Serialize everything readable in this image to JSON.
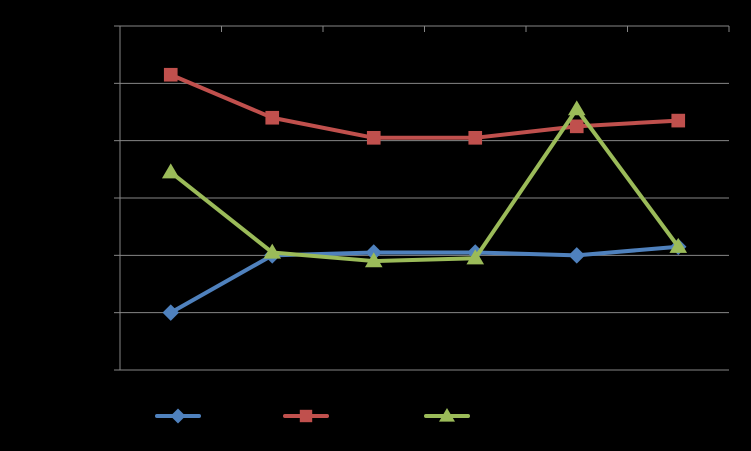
{
  "chart_data": {
    "type": "line",
    "x": [
      1,
      2,
      3,
      4,
      5,
      6
    ],
    "ylim": [
      0,
      6
    ],
    "grid": true,
    "legend_position": "bottom",
    "series": [
      {
        "color": "#4F81BD",
        "marker": "diamond",
        "values": [
          1.0,
          2.0,
          2.05,
          2.05,
          2.0,
          2.15
        ]
      },
      {
        "color": "#C0504D",
        "marker": "square",
        "values": [
          5.15,
          4.4,
          4.05,
          4.05,
          4.25,
          4.35
        ]
      },
      {
        "color": "#9BBB59",
        "marker": "triangle",
        "values": [
          3.45,
          2.05,
          1.9,
          1.95,
          4.55,
          2.15
        ]
      }
    ]
  }
}
